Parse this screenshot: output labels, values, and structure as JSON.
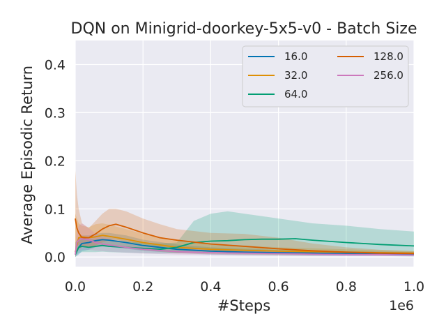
{
  "chart_data": {
    "type": "line",
    "title": "DQN on Minigrid-doorkey-5x5-v0 - Batch Size",
    "xlabel": "#Steps",
    "ylabel": "Average Episodic Return",
    "x_multiplier_label": "1e6",
    "xlim": [
      0,
      1.0
    ],
    "ylim": [
      -0.02,
      0.45
    ],
    "xticks": [
      0.0,
      0.2,
      0.4,
      0.6,
      0.8,
      1.0
    ],
    "xtick_labels": [
      "0.0",
      "0.2",
      "0.4",
      "0.6",
      "0.8",
      "1.0"
    ],
    "yticks": [
      0.0,
      0.1,
      0.2,
      0.3,
      0.4
    ],
    "ytick_labels": [
      "0.0",
      "0.1",
      "0.2",
      "0.3",
      "0.4"
    ],
    "grid": true,
    "legend_position": "top-right",
    "series": [
      {
        "name": "16.0",
        "color": "#0173b2",
        "x": [
          0,
          0.01,
          0.02,
          0.04,
          0.06,
          0.08,
          0.1,
          0.15,
          0.2,
          0.3,
          0.4,
          0.5,
          0.6,
          0.7,
          0.8,
          0.9,
          1.0
        ],
        "y": [
          0.005,
          0.02,
          0.028,
          0.03,
          0.034,
          0.036,
          0.035,
          0.03,
          0.024,
          0.016,
          0.012,
          0.01,
          0.009,
          0.008,
          0.007,
          0.006,
          0.005
        ],
        "upper": [
          0.02,
          0.04,
          0.045,
          0.045,
          0.048,
          0.05,
          0.05,
          0.045,
          0.036,
          0.026,
          0.02,
          0.017,
          0.015,
          0.013,
          0.012,
          0.011,
          0.01
        ],
        "lower": [
          0.0,
          0.005,
          0.012,
          0.015,
          0.02,
          0.022,
          0.021,
          0.017,
          0.013,
          0.008,
          0.005,
          0.004,
          0.003,
          0.002,
          0.002,
          0.002,
          0.001
        ]
      },
      {
        "name": "32.0",
        "color": "#de8f05",
        "x": [
          0,
          0.01,
          0.02,
          0.04,
          0.06,
          0.08,
          0.1,
          0.15,
          0.2,
          0.3,
          0.4,
          0.5,
          0.6,
          0.7,
          0.8,
          0.9,
          1.0
        ],
        "y": [
          0.01,
          0.04,
          0.042,
          0.04,
          0.042,
          0.045,
          0.043,
          0.037,
          0.03,
          0.02,
          0.016,
          0.014,
          0.012,
          0.011,
          0.01,
          0.009,
          0.008
        ],
        "upper": [
          0.09,
          0.07,
          0.065,
          0.062,
          0.068,
          0.07,
          0.067,
          0.058,
          0.048,
          0.035,
          0.028,
          0.024,
          0.02,
          0.018,
          0.016,
          0.014,
          0.012
        ],
        "lower": [
          0.0,
          0.015,
          0.02,
          0.02,
          0.022,
          0.024,
          0.022,
          0.018,
          0.014,
          0.008,
          0.006,
          0.005,
          0.004,
          0.004,
          0.004,
          0.004,
          0.004
        ]
      },
      {
        "name": "64.0",
        "color": "#029e73",
        "x": [
          0,
          0.01,
          0.02,
          0.04,
          0.06,
          0.08,
          0.1,
          0.15,
          0.2,
          0.25,
          0.3,
          0.35,
          0.4,
          0.45,
          0.5,
          0.55,
          0.6,
          0.65,
          0.7,
          0.8,
          0.9,
          1.0
        ],
        "y": [
          0.005,
          0.02,
          0.022,
          0.02,
          0.022,
          0.024,
          0.022,
          0.02,
          0.018,
          0.016,
          0.02,
          0.03,
          0.033,
          0.034,
          0.036,
          0.037,
          0.037,
          0.038,
          0.035,
          0.03,
          0.026,
          0.023
        ],
        "upper": [
          0.03,
          0.04,
          0.04,
          0.037,
          0.036,
          0.037,
          0.035,
          0.032,
          0.03,
          0.028,
          0.03,
          0.075,
          0.09,
          0.095,
          0.09,
          0.085,
          0.08,
          0.075,
          0.07,
          0.065,
          0.058,
          0.053
        ],
        "lower": [
          0.0,
          0.008,
          0.01,
          0.01,
          0.01,
          0.011,
          0.01,
          0.009,
          0.008,
          0.007,
          0.008,
          0.01,
          0.01,
          0.01,
          0.01,
          0.01,
          0.009,
          0.009,
          0.008,
          0.008,
          0.007,
          0.006
        ]
      },
      {
        "name": "128.0",
        "color": "#d55e00",
        "x": [
          0,
          0.005,
          0.01,
          0.02,
          0.04,
          0.06,
          0.08,
          0.1,
          0.12,
          0.15,
          0.2,
          0.25,
          0.3,
          0.4,
          0.5,
          0.6,
          0.7,
          0.8,
          0.9,
          1.0
        ],
        "y": [
          0.08,
          0.06,
          0.05,
          0.04,
          0.04,
          0.048,
          0.058,
          0.065,
          0.068,
          0.062,
          0.05,
          0.04,
          0.035,
          0.027,
          0.022,
          0.017,
          0.013,
          0.01,
          0.008,
          0.007
        ],
        "upper": [
          0.18,
          0.13,
          0.1,
          0.07,
          0.06,
          0.075,
          0.09,
          0.1,
          0.1,
          0.095,
          0.08,
          0.068,
          0.058,
          0.05,
          0.048,
          0.04,
          0.028,
          0.02,
          0.015,
          0.012
        ],
        "lower": [
          0.0,
          0.02,
          0.025,
          0.022,
          0.02,
          0.024,
          0.03,
          0.035,
          0.036,
          0.032,
          0.026,
          0.02,
          0.016,
          0.012,
          0.01,
          0.007,
          0.005,
          0.004,
          0.003,
          0.003
        ]
      },
      {
        "name": "256.0",
        "color": "#cc78bc",
        "x": [
          0,
          0.005,
          0.01,
          0.02,
          0.04,
          0.06,
          0.08,
          0.1,
          0.15,
          0.2,
          0.3,
          0.4,
          0.5,
          0.6,
          0.7,
          0.8,
          0.9,
          1.0
        ],
        "y": [
          0.005,
          0.03,
          0.035,
          0.038,
          0.036,
          0.03,
          0.027,
          0.025,
          0.02,
          0.016,
          0.011,
          0.009,
          0.008,
          0.007,
          0.006,
          0.005,
          0.005,
          0.004
        ],
        "upper": [
          0.02,
          0.055,
          0.065,
          0.07,
          0.06,
          0.048,
          0.042,
          0.038,
          0.03,
          0.025,
          0.018,
          0.015,
          0.013,
          0.011,
          0.01,
          0.009,
          0.008,
          0.008
        ],
        "lower": [
          0.0,
          0.01,
          0.012,
          0.015,
          0.015,
          0.013,
          0.012,
          0.011,
          0.009,
          0.007,
          0.005,
          0.004,
          0.003,
          0.003,
          0.002,
          0.002,
          0.002,
          0.002
        ]
      }
    ]
  }
}
